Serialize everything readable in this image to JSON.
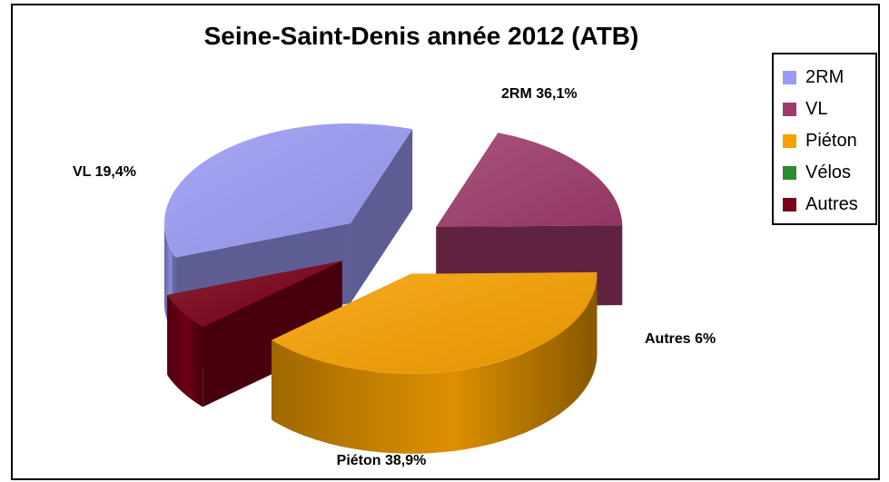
{
  "chart_data": {
    "type": "pie",
    "title": "Seine-Saint-Denis année 2012 (ATB)",
    "categories": [
      "2RM",
      "VL",
      "Piéton",
      "Vélos",
      "Autres"
    ],
    "values": [
      36.1,
      19.4,
      38.9,
      0,
      6
    ],
    "slice_labels": [
      "2RM 36,1%",
      "VL 19,4%",
      "Piéton 38,9%",
      "",
      "Autres 6%"
    ],
    "colors": [
      "#9b9bf5",
      "#9e3b6b",
      "#f6a000",
      "#2c8c2c",
      "#7a0018"
    ],
    "style": "3d-exploded",
    "legend": "right"
  }
}
